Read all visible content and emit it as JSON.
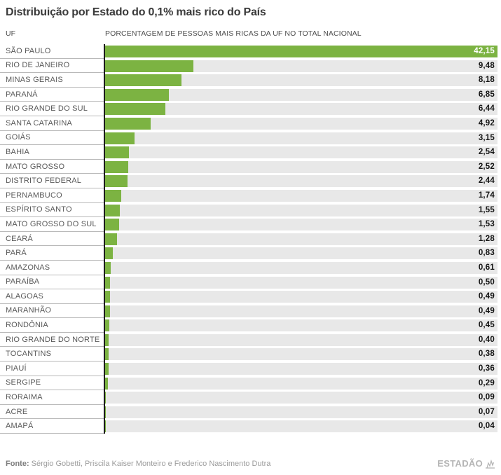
{
  "title": "Distribuição por Estado do 0,1% mais rico do País",
  "columns": {
    "uf": "UF",
    "value": "PORCENTAGEM DE PESSOAS MAIS RICAS DA UF NO TOTAL NACIONAL"
  },
  "footer": {
    "source_label": "Fonte:",
    "source_text": "Sérgio Gobetti, Priscila Kaiser Monteiro e Frederico Nascimento Dutra",
    "brand": "ESTADÃO"
  },
  "colors": {
    "bar": "#7cb342",
    "track": "#e8e8e8",
    "axis": "#1c1c1c",
    "row_border": "#b9b9b9",
    "title_text": "#3a3a3a",
    "label_text": "#595959",
    "value_text": "#141414",
    "value_text_on_bar": "#ffffff"
  },
  "chart_data": {
    "type": "bar",
    "orientation": "horizontal",
    "title": "Distribuição por Estado do 0,1% mais rico do País",
    "xlabel": "PORCENTAGEM DE PESSOAS MAIS RICAS DA UF NO TOTAL NACIONAL",
    "ylabel": "UF",
    "xlim": [
      0,
      42.15
    ],
    "grid": false,
    "legend": false,
    "categories": [
      "SÃO PAULO",
      "RIO DE JANEIRO",
      "MINAS GERAIS",
      "PARANÁ",
      "RIO GRANDE DO SUL",
      "SANTA CATARINA",
      "GOIÁS",
      "BAHIA",
      "MATO GROSSO",
      "DISTRITO FEDERAL",
      "PERNAMBUCO",
      "ESPÍRITO SANTO",
      "MATO GROSSO DO SUL",
      "CEARÁ",
      "PARÁ",
      "AMAZONAS",
      "PARAÍBA",
      "ALAGOAS",
      "MARANHÃO",
      "RONDÔNIA",
      "RIO GRANDE DO NORTE",
      "TOCANTINS",
      "PIAUÍ",
      "SERGIPE",
      "RORAIMA",
      "ACRE",
      "AMAPÁ"
    ],
    "values": [
      42.15,
      9.48,
      8.18,
      6.85,
      6.44,
      4.92,
      3.15,
      2.54,
      2.52,
      2.44,
      1.74,
      1.55,
      1.53,
      1.28,
      0.83,
      0.61,
      0.5,
      0.49,
      0.49,
      0.45,
      0.4,
      0.38,
      0.36,
      0.29,
      0.09,
      0.07,
      0.04
    ],
    "value_labels": [
      "42,15",
      "9,48",
      "8,18",
      "6,85",
      "6,44",
      "4,92",
      "3,15",
      "2,54",
      "2,52",
      "2,44",
      "1,74",
      "1,55",
      "1,53",
      "1,28",
      "0,83",
      "0,61",
      "0,50",
      "0,49",
      "0,49",
      "0,45",
      "0,40",
      "0,38",
      "0,36",
      "0,29",
      "0,09",
      "0,07",
      "0,04"
    ]
  }
}
